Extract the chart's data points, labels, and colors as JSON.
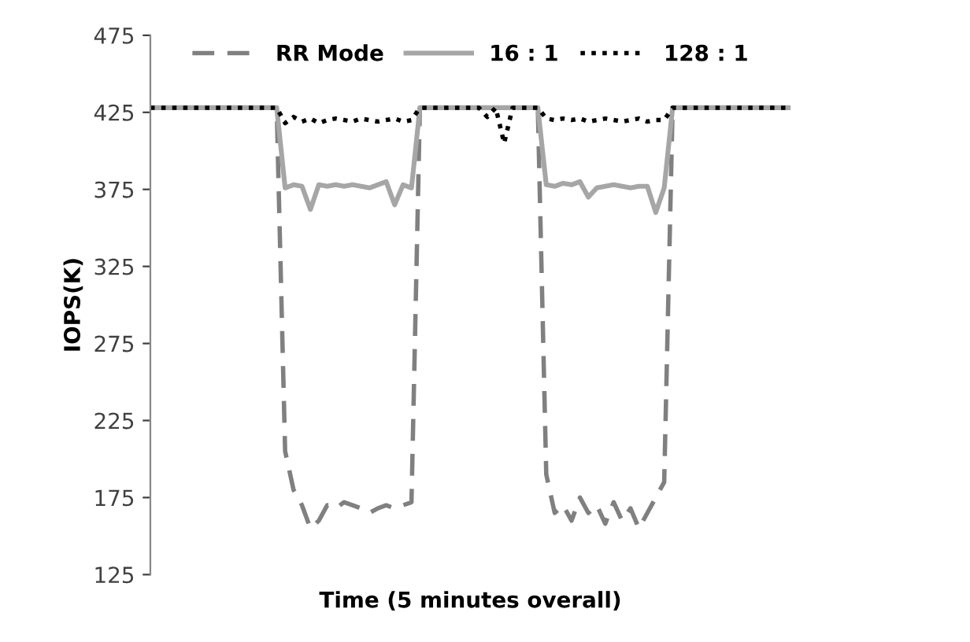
{
  "chart_data": {
    "type": "line",
    "xlabel": "Time (5 minutes overall)",
    "ylabel": "IOPS(K)",
    "ylim": [
      125,
      475
    ],
    "yticks": [
      125,
      175,
      225,
      275,
      325,
      375,
      425,
      475
    ],
    "grid": false,
    "legend": "top",
    "marker": "none",
    "categories": [
      null,
      null,
      null,
      null,
      null,
      null,
      null,
      null,
      null,
      null,
      null,
      null,
      null,
      null,
      null,
      null,
      null,
      null,
      null,
      null,
      null,
      null,
      null,
      null,
      null,
      null,
      null,
      null,
      null,
      null,
      null,
      null,
      null,
      null,
      null,
      null,
      null,
      null,
      null,
      null,
      null,
      null,
      null,
      null,
      null,
      null,
      null,
      null,
      null,
      null,
      null,
      null,
      null,
      null,
      null,
      null,
      null,
      null,
      null,
      null,
      null,
      null,
      null,
      null,
      null,
      null,
      null,
      null,
      null,
      null,
      null,
      null,
      null,
      null,
      null,
      null,
      null
    ],
    "series": [
      {
        "name": "RR Mode",
        "color": "#808080",
        "line_style": "dashed",
        "values": [
          428,
          428,
          428,
          428,
          428,
          428,
          428,
          428,
          428,
          428,
          428,
          428,
          428,
          428,
          428,
          428,
          205,
          180,
          170,
          155,
          160,
          170,
          168,
          172,
          170,
          168,
          165,
          168,
          170,
          168,
          170,
          172,
          428,
          428,
          428,
          428,
          428,
          428,
          428,
          428,
          428,
          428,
          428,
          428,
          428,
          428,
          428,
          190,
          165,
          170,
          160,
          175,
          165,
          170,
          158,
          172,
          160,
          168,
          155,
          165,
          175,
          185,
          428,
          428,
          428,
          428,
          428,
          428,
          428,
          428,
          428,
          428,
          428,
          428,
          428,
          428,
          428
        ]
      },
      {
        "name": "16 : 1",
        "color": "#a6a6a6",
        "line_style": "solid",
        "values": [
          428,
          428,
          428,
          428,
          428,
          428,
          428,
          428,
          428,
          428,
          428,
          428,
          428,
          428,
          428,
          428,
          376,
          378,
          377,
          362,
          378,
          377,
          378,
          377,
          378,
          377,
          376,
          378,
          380,
          365,
          378,
          376,
          428,
          428,
          428,
          428,
          428,
          428,
          428,
          428,
          428,
          428,
          428,
          428,
          428,
          428,
          428,
          378,
          377,
          379,
          378,
          380,
          370,
          376,
          377,
          378,
          377,
          376,
          377,
          377,
          360,
          376,
          428,
          428,
          428,
          428,
          428,
          428,
          428,
          428,
          428,
          428,
          428,
          428,
          428,
          428,
          428
        ]
      },
      {
        "name": "128 : 1",
        "color": "#000000",
        "line_style": "dotted",
        "values": [
          428,
          428,
          428,
          428,
          428,
          428,
          428,
          428,
          428,
          428,
          428,
          428,
          428,
          428,
          428,
          428,
          418,
          422,
          419,
          421,
          418,
          420,
          421,
          420,
          419,
          421,
          420,
          419,
          420,
          421,
          419,
          420,
          428,
          428,
          428,
          428,
          428,
          428,
          428,
          428,
          422,
          428,
          405,
          428,
          428,
          428,
          428,
          421,
          420,
          421,
          420,
          421,
          419,
          420,
          421,
          420,
          419,
          420,
          421,
          419,
          420,
          420,
          428,
          428,
          428,
          428,
          428,
          428,
          428,
          428,
          428,
          428,
          428,
          428,
          428,
          428,
          428
        ]
      }
    ]
  }
}
